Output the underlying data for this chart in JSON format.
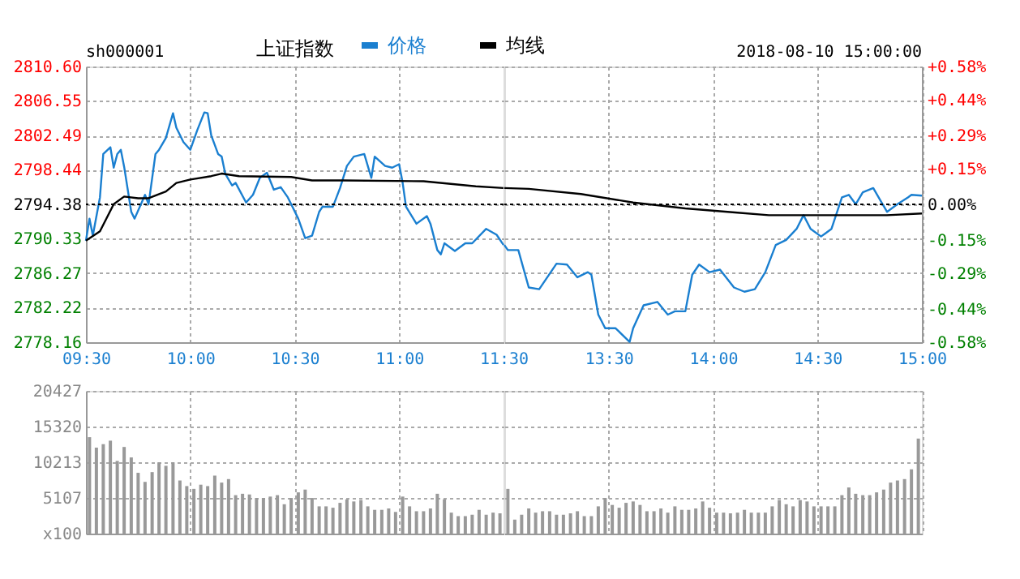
{
  "chart_data": [
    {
      "type": "line",
      "title": "上证指数",
      "annotations": [
        "sh000001"
      ],
      "series": [
        {
          "name": "价格",
          "color": "#1a7fd0",
          "x": [
            9.5,
            9.517,
            9.533,
            9.567,
            9.583,
            9.617,
            9.633,
            9.65,
            9.667,
            9.683,
            9.717,
            9.733,
            9.767,
            9.783,
            9.8,
            9.833,
            9.85,
            9.883,
            9.917,
            9.933,
            9.967,
            10,
            10.033,
            10.067,
            10.083,
            10.1,
            10.133,
            10.15,
            10.167,
            10.2,
            10.217,
            10.267,
            10.3,
            10.333,
            10.367,
            10.4,
            10.433,
            10.467,
            10.517,
            10.55,
            10.583,
            10.617,
            10.633,
            10.683,
            10.717,
            10.75,
            10.783,
            10.833,
            10.867,
            10.883,
            10.933,
            10.967,
            11,
            11.017,
            11.033,
            11.083,
            11.133,
            11.15,
            11.183,
            11.2,
            11.217,
            11.267,
            11.317,
            11.35,
            11.417,
            11.467,
            11.5
          ],
          "values": [
            2790.1,
            2792.7,
            2790.7,
            2795.2,
            2800.3,
            2801.1,
            2798.7,
            2800.3,
            2800.8,
            2798.8,
            2793.5,
            2792.7,
            2794.6,
            2795.5,
            2794.4,
            2800.3,
            2800.8,
            2802.2,
            2805.1,
            2803.4,
            2801.7,
            2800.8,
            2803.1,
            2805.2,
            2805.1,
            2802.5,
            2800.3,
            2800.0,
            2798.0,
            2796.6,
            2796.9,
            2794.6,
            2795.5,
            2797.5,
            2798.1,
            2796.1,
            2796.4,
            2795.2,
            2792.7,
            2790.4,
            2790.7,
            2793.5,
            2794.1,
            2794.1,
            2796.3,
            2798.9,
            2800.0,
            2800.3,
            2797.5,
            2800.0,
            2798.9,
            2798.7,
            2799.1,
            2796.9,
            2794.1,
            2792.1,
            2793.0,
            2792.1,
            2789.0,
            2788.5,
            2789.8,
            2788.9,
            2789.8,
            2789.8,
            2791.5,
            2790.8,
            2789.6
          ]
        },
        {
          "name": "均线",
          "color": "#000000",
          "x": [
            9.5,
            9.567,
            9.633,
            9.683,
            9.75,
            9.8,
            9.883,
            9.933,
            10,
            10.1,
            10.15,
            10.233,
            10.483,
            10.583,
            10.733,
            11.117,
            11.367,
            11.5
          ],
          "values": [
            2790.1,
            2791.2,
            2794.4,
            2795.3,
            2795.1,
            2795.1,
            2795.9,
            2796.9,
            2797.3,
            2797.7,
            2798.0,
            2797.7,
            2797.6,
            2797.2,
            2797.2,
            2797.1,
            2796.5,
            2796.3
          ]
        }
      ],
      "xlim": [
        9.5,
        11.5
      ],
      "xticks": [
        {
          "value": 9.5,
          "label": "09:30"
        },
        {
          "value": 10,
          "label": "10:00"
        },
        {
          "value": 10.5,
          "label": "10:30"
        },
        {
          "value": 11,
          "label": "11:00"
        },
        {
          "value": 11.5,
          "label": "11:30"
        }
      ],
      "ylim": [
        2778.16,
        2810.6
      ],
      "yticks": [
        2778.16,
        2782.22,
        2786.27,
        2790.33,
        2794.38,
        2798.44,
        2802.49,
        2806.55,
        {
          "value": 2810.6,
          "label": "2810.60"
        }
      ],
      "ref_lines": [
        {
          "axis": "y",
          "value": 2794.38,
          "color": "#000000",
          "line_style": "dotted"
        }
      ],
      "grid": true,
      "legend": "top",
      "marker": "none",
      "line_style": "solid"
    },
    {
      "type": "line",
      "annotations": [
        "2018-08-10 15:00:00"
      ],
      "series": [
        {
          "color": "#1a7fd0",
          "x": [
            13,
            13.017,
            13.067,
            13.117,
            13.167,
            13.25,
            13.3,
            13.35,
            13.4,
            13.417,
            13.45,
            13.483,
            13.533,
            13.6,
            13.617,
            13.667,
            13.733,
            13.783,
            13.817,
            13.867,
            13.9,
            13.933,
            13.983,
            14.033,
            14.1,
            14.15,
            14.2,
            14.25,
            14.3,
            14.35,
            14.4,
            14.433,
            14.467,
            14.517,
            14.567,
            14.617,
            14.65,
            14.683,
            14.717,
            14.767,
            14.8,
            14.833,
            14.883,
            14.933,
            14.95,
            15
          ],
          "values": [
            2789.6,
            2789.0,
            2789.0,
            2784.6,
            2784.4,
            2787.4,
            2787.3,
            2785.8,
            2786.4,
            2786.1,
            2781.4,
            2779.8,
            2779.8,
            2778.2,
            2779.8,
            2782.5,
            2782.9,
            2781.4,
            2781.8,
            2781.8,
            2786.1,
            2787.3,
            2786.4,
            2786.7,
            2784.6,
            2784.1,
            2784.4,
            2786.4,
            2789.6,
            2790.2,
            2791.5,
            2793.1,
            2791.5,
            2790.6,
            2791.5,
            2795.2,
            2795.5,
            2794.4,
            2795.8,
            2796.3,
            2794.9,
            2793.5,
            2794.4,
            2795.2,
            2795.5,
            2795.4
          ]
        },
        {
          "color": "#000000",
          "x": [
            13,
            13.117,
            13.367,
            13.617,
            13.867,
            14.117,
            14.267,
            14.833,
            15
          ],
          "values": [
            2796.3,
            2796.2,
            2795.6,
            2794.6,
            2793.9,
            2793.4,
            2793.1,
            2793.1,
            2793.3
          ]
        }
      ],
      "xlim": [
        13,
        15
      ],
      "xticks": [
        {
          "value": 13.5,
          "label": "13:30"
        },
        {
          "value": 14,
          "label": "14:00"
        },
        {
          "value": 14.5,
          "label": "14:30"
        },
        {
          "value": 15,
          "label": "15:00"
        }
      ],
      "ylim": [
        2778.16,
        2810.6
      ],
      "yticks": [
        2778.16,
        2782.22,
        2786.27,
        2790.33,
        2794.38,
        2798.44,
        2802.49,
        2806.55,
        2810.6
      ],
      "y2lim": [
        -0.58,
        0.58
      ],
      "y2ticks": [
        {
          "value": -0.58,
          "label": "-0.58%"
        },
        {
          "value": -0.44,
          "label": "-0.44%"
        },
        {
          "value": -0.29,
          "label": "-0.29%"
        },
        {
          "value": -0.15,
          "label": "-0.15%"
        },
        {
          "value": 0,
          "label": "0.00%"
        },
        {
          "value": 0.15,
          "label": "+0.15%"
        },
        {
          "value": 0.29,
          "label": "+0.29%"
        },
        {
          "value": 0.44,
          "label": "+0.44%"
        },
        {
          "value": 0.58,
          "label": "+0.58%"
        }
      ],
      "ref_lines": [
        {
          "axis": "y",
          "value": 2794.38,
          "color": "#000000",
          "line_style": "dotted"
        }
      ],
      "grid": true,
      "marker": "none",
      "line_style": "solid",
      "tick_labels": "x"
    },
    {
      "type": "bar",
      "color": "#999999",
      "x": [
        9.517,
        9.55,
        9.583,
        9.617,
        9.65,
        9.683,
        9.717,
        9.75,
        9.783,
        9.817,
        9.85,
        9.883,
        9.917,
        9.95,
        9.983,
        10.017,
        10.05,
        10.083,
        10.117,
        10.15,
        10.183,
        10.217,
        10.25,
        10.283,
        10.317,
        10.35,
        10.383,
        10.417,
        10.45,
        10.483,
        10.517,
        10.55,
        10.583,
        10.617,
        10.65,
        10.683,
        10.717,
        10.75,
        10.783,
        10.817,
        10.85,
        10.883,
        10.917,
        10.95,
        10.983,
        11.017,
        11.05,
        11.083,
        11.117,
        11.15,
        11.183,
        11.217,
        11.25,
        11.283,
        11.317,
        11.35,
        11.383,
        11.417,
        11.45,
        11.483
      ],
      "values": [
        13800,
        12300,
        12800,
        13300,
        10400,
        12400,
        10900,
        8700,
        7400,
        8800,
        10200,
        9700,
        10200,
        7600,
        6800,
        6400,
        7000,
        6800,
        8300,
        7300,
        7800,
        5500,
        5700,
        5600,
        5100,
        5100,
        5300,
        5500,
        4200,
        5100,
        5900,
        6300,
        5100,
        3900,
        3900,
        3700,
        4400,
        4900,
        4600,
        4800,
        3900,
        3400,
        3400,
        3600,
        3100,
        5300,
        3900,
        3200,
        3200,
        3600,
        5700,
        4900,
        3000,
        2500,
        2500,
        2700,
        3400,
        2700,
        3000,
        2900
      ],
      "xlim": [
        9.5,
        11.5
      ],
      "xticks": [
        9.5,
        10,
        10.5,
        11,
        11.5
      ],
      "ylim": [
        0,
        20427
      ],
      "yticks": [
        {
          "value": 0,
          "label": "x100"
        },
        5107,
        10213,
        15320,
        20427
      ],
      "grid": true,
      "tick_labels": "y"
    },
    {
      "type": "bar",
      "color": "#999999",
      "x": [
        13.017,
        13.05,
        13.083,
        13.117,
        13.15,
        13.183,
        13.217,
        13.25,
        13.283,
        13.317,
        13.35,
        13.383,
        13.417,
        13.45,
        13.483,
        13.517,
        13.55,
        13.583,
        13.617,
        13.65,
        13.683,
        13.717,
        13.75,
        13.783,
        13.817,
        13.85,
        13.883,
        13.917,
        13.95,
        13.983,
        14.017,
        14.05,
        14.083,
        14.117,
        14.15,
        14.183,
        14.217,
        14.25,
        14.283,
        14.317,
        14.35,
        14.383,
        14.417,
        14.45,
        14.483,
        14.517,
        14.55,
        14.583,
        14.617,
        14.65,
        14.683,
        14.717,
        14.75,
        14.783,
        14.817,
        14.85,
        14.883,
        14.917,
        14.95,
        14.983
      ],
      "values": [
        6400,
        2000,
        2700,
        3600,
        3000,
        3200,
        3200,
        2700,
        2700,
        2900,
        3200,
        2500,
        2500,
        3900,
        5100,
        4100,
        3700,
        4400,
        4600,
        4100,
        3200,
        3200,
        3600,
        3000,
        3900,
        3400,
        3400,
        3600,
        4600,
        3700,
        3000,
        3000,
        2900,
        3000,
        3400,
        3000,
        3000,
        3000,
        3900,
        4800,
        4200,
        3900,
        4800,
        4600,
        3900,
        3900,
        3900,
        3900,
        5500,
        6600,
        5700,
        5500,
        5500,
        5900,
        6300,
        7300,
        7600,
        7800,
        9200,
        13600
      ],
      "xlim": [
        13,
        15
      ],
      "xticks": [
        13.5,
        14,
        14.5,
        15
      ],
      "ylim": [
        0,
        20427
      ],
      "yticks": [
        0,
        5107,
        10213,
        15320,
        20427
      ],
      "grid": true,
      "tick_labels": false
    }
  ]
}
